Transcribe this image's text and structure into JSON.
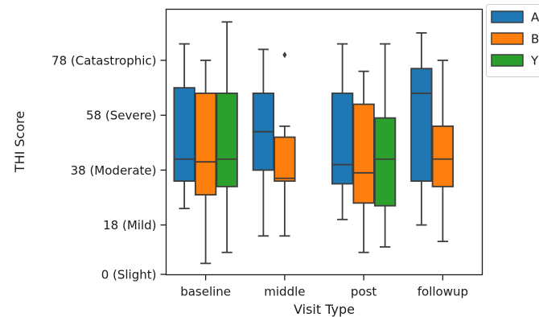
{
  "chart_data": {
    "type": "box",
    "xlabel": "Visit Type",
    "ylabel": "THI Score",
    "categories": [
      "baseline",
      "middle",
      "post",
      "followup"
    ],
    "ylim": [
      0,
      92
    ],
    "y_ticks": [
      {
        "value": 0,
        "label": "0 (Slight)"
      },
      {
        "value": 18,
        "label": "18 (Mild)"
      },
      {
        "value": 38,
        "label": "38 (Moderate)"
      },
      {
        "value": 58,
        "label": "58 (Severe)"
      },
      {
        "value": 78,
        "label": "78 (Catastrophic)"
      }
    ],
    "grid": false,
    "legend_position": "outside-right",
    "series": [
      {
        "name": "A",
        "color": "#1f77b4",
        "boxes": [
          {
            "category": "baseline",
            "whisker_low": 24,
            "q1": 34,
            "median": 42,
            "q3": 68,
            "whisker_high": 84,
            "outliers": []
          },
          {
            "category": "middle",
            "whisker_low": 14,
            "q1": 38,
            "median": 52,
            "q3": 66,
            "whisker_high": 82,
            "outliers": []
          },
          {
            "category": "post",
            "whisker_low": 20,
            "q1": 33,
            "median": 40,
            "q3": 66,
            "whisker_high": 84,
            "outliers": []
          },
          {
            "category": "followup",
            "whisker_low": 18,
            "q1": 34,
            "median": 66,
            "q3": 75,
            "whisker_high": 88,
            "outliers": []
          }
        ]
      },
      {
        "name": "B",
        "color": "#ff7f0e",
        "boxes": [
          {
            "category": "baseline",
            "whisker_low": 4,
            "q1": 29,
            "median": 41,
            "q3": 66,
            "whisker_high": 78,
            "outliers": []
          },
          {
            "category": "middle",
            "whisker_low": 14,
            "q1": 34,
            "median": 35,
            "q3": 50,
            "whisker_high": 54,
            "outliers": [
              80
            ]
          },
          {
            "category": "post",
            "whisker_low": 8,
            "q1": 26,
            "median": 37,
            "q3": 62,
            "whisker_high": 74,
            "outliers": []
          },
          {
            "category": "followup",
            "whisker_low": 12,
            "q1": 32,
            "median": 42,
            "q3": 54,
            "whisker_high": 78,
            "outliers": []
          }
        ]
      },
      {
        "name": "Y",
        "color": "#2ca02c",
        "boxes": [
          {
            "category": "baseline",
            "whisker_low": 8,
            "q1": 32,
            "median": 42,
            "q3": 66,
            "whisker_high": 92,
            "outliers": []
          },
          {
            "category": "post",
            "whisker_low": 10,
            "q1": 25,
            "median": 42,
            "q3": 57,
            "whisker_high": 84,
            "outliers": []
          }
        ]
      }
    ]
  }
}
